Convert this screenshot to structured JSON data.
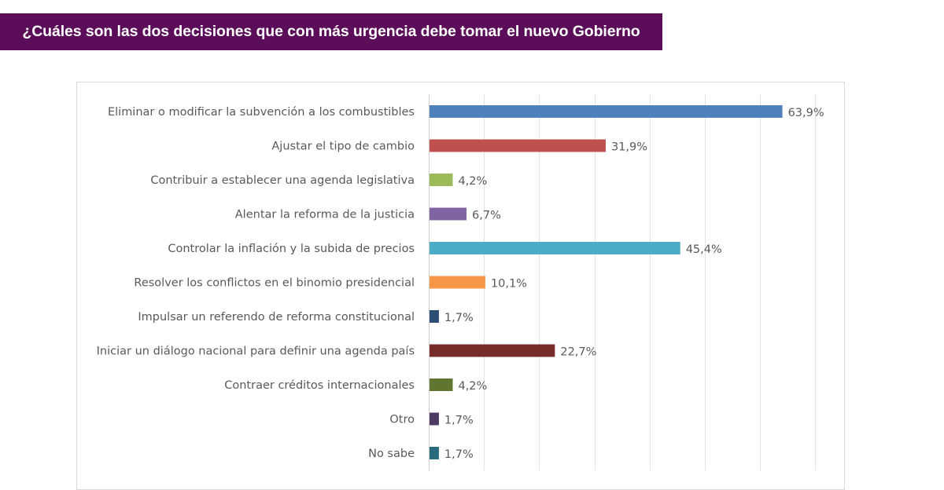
{
  "header": {
    "title": "¿Cuáles son las dos decisiones que con más urgencia debe tomar el nuevo Gobierno",
    "background_color": "#5c0d59"
  },
  "chart_data": {
    "type": "bar",
    "orientation": "horizontal",
    "title": "¿Cuáles son las dos decisiones que con más urgencia debe tomar el nuevo Gobierno",
    "xlabel": "",
    "ylabel": "",
    "xlim": [
      0,
      70
    ],
    "grid": true,
    "grid_step": 10,
    "legend": "none",
    "categories": [
      "Eliminar o modificar la subvención a los combustibles",
      "Ajustar el tipo de cambio",
      "Contribuir a establecer una agenda legislativa",
      "Alentar la reforma de la justicia",
      "Controlar la inflación y la subida de precios",
      "Resolver los conflictos en el binomio presidencial",
      "Impulsar un referendo de reforma constitucional",
      "Iniciar un diálogo nacional para definir una agenda país",
      "Contraer créditos internacionales",
      "Otro",
      "No sabe"
    ],
    "values": [
      63.9,
      31.9,
      4.2,
      6.7,
      45.4,
      10.1,
      1.7,
      22.7,
      4.2,
      1.7,
      1.7
    ],
    "value_labels": [
      "63,9%",
      "31,9%",
      "4,2%",
      "6,7%",
      "45,4%",
      "10,1%",
      "1,7%",
      "22,7%",
      "4,2%",
      "1,7%",
      "1,7%"
    ],
    "colors": [
      "#4f81bd",
      "#c0504d",
      "#9bbb59",
      "#8064a2",
      "#4bacc6",
      "#f79646",
      "#2c4d75",
      "#772c2a",
      "#5f7530",
      "#4d3b62",
      "#276a7c"
    ]
  }
}
